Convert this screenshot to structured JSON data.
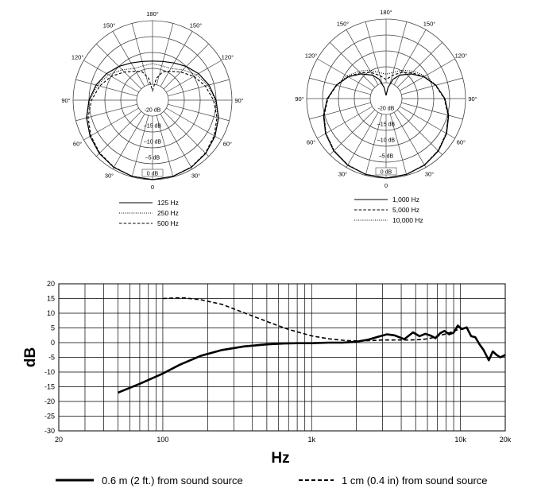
{
  "chart_data": [
    {
      "type": "polar",
      "angle_labels": [
        "180°",
        "150°",
        "150°",
        "120°",
        "120°",
        "90°",
        "90°",
        "60°",
        "60°",
        "30°",
        "30°",
        "0"
      ],
      "radial_labels": [
        "-20 dB",
        "–15 dB",
        "–10 dB",
        "–5 dB",
        "0 dB"
      ],
      "radial_range_db": [
        -25,
        0
      ],
      "series": [
        {
          "name": "125 Hz",
          "style": "solid",
          "angles_deg": [
            0,
            15,
            30,
            45,
            60,
            75,
            90,
            105,
            120,
            135,
            150,
            165,
            180
          ],
          "db": [
            0,
            -0.2,
            -0.6,
            -1.3,
            -2.3,
            -3.5,
            -5,
            -6.6,
            -8.3,
            -10,
            -11.5,
            -12.4,
            -12.7
          ]
        },
        {
          "name": "250 Hz",
          "style": "dotted",
          "angles_deg": [
            0,
            15,
            30,
            45,
            60,
            75,
            90,
            105,
            120,
            135,
            150,
            165,
            180
          ],
          "db": [
            0,
            -0.2,
            -0.6,
            -1.3,
            -2.3,
            -3.6,
            -5.2,
            -7,
            -9,
            -11.5,
            -13.5,
            -13.8,
            -13.5
          ]
        },
        {
          "name": "500 Hz",
          "style": "dashed",
          "angles_deg": [
            0,
            15,
            30,
            45,
            60,
            75,
            90,
            105,
            120,
            135,
            150,
            160,
            170,
            180
          ],
          "db": [
            0,
            -0.2,
            -0.7,
            -1.5,
            -2.6,
            -4,
            -5.8,
            -7.8,
            -10,
            -12.5,
            -14.5,
            -15.5,
            -18,
            -22
          ]
        }
      ]
    },
    {
      "type": "polar",
      "angle_labels": [
        "180°",
        "150°",
        "150°",
        "120°",
        "120°",
        "90°",
        "90°",
        "60°",
        "60°",
        "30°",
        "30°",
        "0"
      ],
      "radial_labels": [
        "-20 dB",
        "–15 dB",
        "–10 dB",
        "–5 dB",
        "0 dB"
      ],
      "radial_range_db": [
        -25,
        0
      ],
      "series": [
        {
          "name": "1,000 Hz",
          "style": "solid",
          "angles_deg": [
            0,
            15,
            30,
            45,
            60,
            75,
            90,
            105,
            120,
            135,
            150,
            160,
            170,
            180
          ],
          "db": [
            0,
            -0.3,
            -0.8,
            -1.7,
            -3,
            -4.6,
            -6.5,
            -8.8,
            -11.3,
            -14,
            -16.5,
            -18.5,
            -21.5,
            -24
          ]
        },
        {
          "name": "5,000 Hz",
          "style": "dashed",
          "angles_deg": [
            0,
            15,
            30,
            45,
            60,
            75,
            90,
            105,
            120,
            135,
            150,
            165,
            180
          ],
          "db": [
            0,
            -0.3,
            -0.9,
            -1.8,
            -3.1,
            -4.8,
            -6.7,
            -8.9,
            -11.2,
            -13.5,
            -15.5,
            -17.5,
            -19
          ]
        },
        {
          "name": "10,000 Hz",
          "style": "dotted",
          "angles_deg": [
            0,
            15,
            30,
            45,
            60,
            75,
            90,
            105,
            120,
            135,
            150,
            165,
            180
          ],
          "db": [
            0,
            -0.3,
            -0.9,
            -1.9,
            -3.2,
            -4.8,
            -6.6,
            -8.7,
            -10.8,
            -12.8,
            -14.7,
            -16.5,
            -17.3
          ]
        }
      ]
    },
    {
      "type": "line",
      "xscale": "log",
      "xlabel": "Hz",
      "ylabel": "dB",
      "xlim": [
        20,
        20000
      ],
      "ylim": [
        -30,
        20
      ],
      "x_tick_labels": [
        {
          "value": 20,
          "label": "20"
        },
        {
          "value": 100,
          "label": "100"
        },
        {
          "value": 1000,
          "label": "1k"
        },
        {
          "value": 10000,
          "label": "10k"
        },
        {
          "value": 20000,
          "label": "20k"
        }
      ],
      "y_ticks": [
        20,
        15,
        10,
        5,
        0,
        -5,
        -10,
        -15,
        -20,
        -25,
        -30
      ],
      "grid": true,
      "series": [
        {
          "name": "0.6 m (2 ft.) from sound source",
          "style": "solid-thick",
          "x": [
            50,
            70,
            100,
            130,
            180,
            250,
            350,
            500,
            650,
            800,
            1000,
            1300,
            1600,
            2000,
            2400,
            2800,
            3200,
            3600,
            4200,
            4800,
            5300,
            5800,
            6300,
            6800,
            7300,
            7800,
            8400,
            9000,
            9600,
            10200,
            11000,
            11800,
            12600,
            13400,
            14300,
            15500,
            16500,
            17500,
            18500,
            20000
          ],
          "y": [
            -17,
            -14,
            -10.5,
            -7.5,
            -4.5,
            -2.5,
            -1.3,
            -0.6,
            -0.3,
            -0.2,
            -0.2,
            0,
            0,
            0.3,
            1,
            2,
            2.8,
            2.5,
            1.2,
            3.5,
            2.2,
            3,
            2.4,
            1.5,
            3.2,
            4,
            2.8,
            3.4,
            5.8,
            4.6,
            5.2,
            2.2,
            1.8,
            -0.5,
            -2.5,
            -6,
            -3,
            -4.2,
            -5,
            -4.2
          ]
        },
        {
          "name": "1 cm (0.4 in) from sound source",
          "style": "dashed-thick",
          "x": [
            100,
            120,
            140,
            180,
            250,
            350,
            500,
            700,
            1000,
            1300,
            1700,
            2000,
            2500,
            3000,
            3500,
            4000,
            4600,
            5200,
            5800,
            6400,
            7000,
            8000,
            9000,
            10000
          ],
          "y": [
            15,
            15.2,
            15.2,
            14.6,
            13,
            10.2,
            7.2,
            4.5,
            2.3,
            1.3,
            0.7,
            0.6,
            0.7,
            0.9,
            0.9,
            0.9,
            0.9,
            1,
            1.2,
            1.6,
            2.2,
            3,
            3.8,
            4.8
          ]
        }
      ]
    }
  ]
}
